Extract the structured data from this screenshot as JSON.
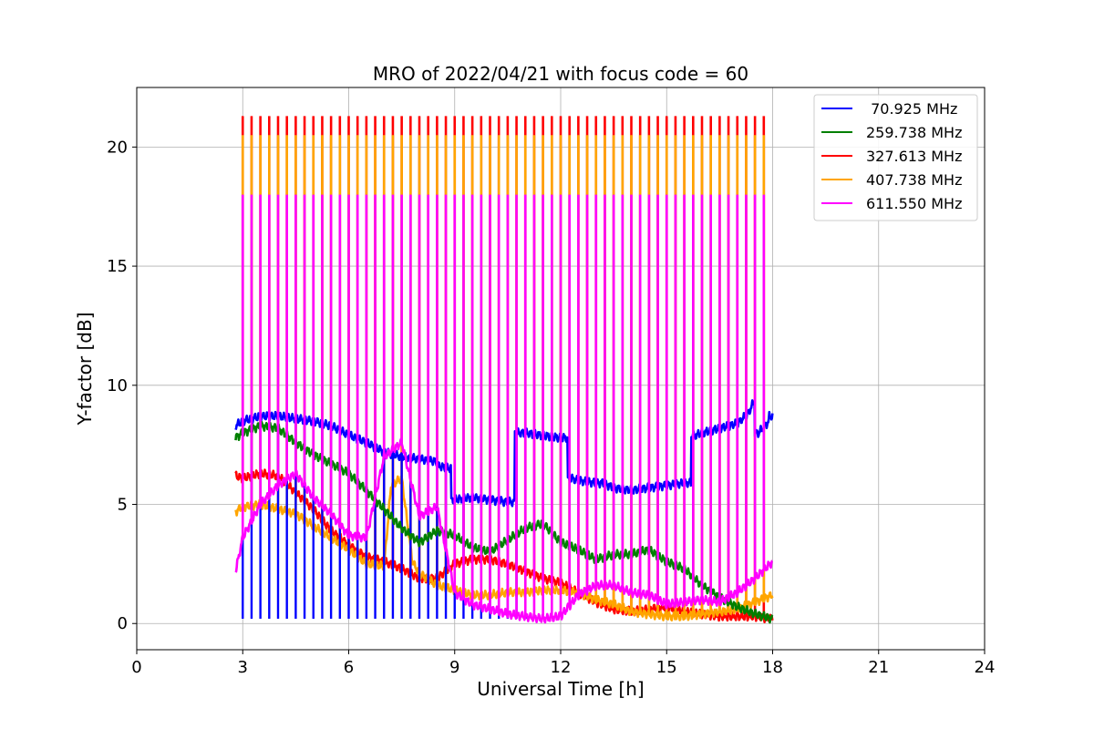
{
  "chart_data": {
    "type": "line",
    "title": "MRO of 2022/04/21 with focus code = 60",
    "xlabel": "Universal Time [h]",
    "ylabel": "Y-factor [dB]",
    "xlim": [
      0,
      24
    ],
    "ylim": [
      -1.1,
      22.5
    ],
    "xticks": [
      0,
      3,
      6,
      9,
      12,
      15,
      18,
      21,
      24
    ],
    "yticks": [
      0,
      5,
      10,
      15,
      20
    ],
    "grid": true,
    "legend_position": "top-right",
    "pulse_interval_h": 0.25,
    "pulse_start_h": 3.0,
    "pulse_end_h": 17.75,
    "series": [
      {
        "name": "70.925 MHz",
        "legend_label": " 70.925 MHz",
        "color": "#0000ff",
        "pulse_range_h": [
          3.0,
          11.0
        ],
        "pulse_low": 0.2,
        "x": [
          2.8,
          3.0,
          3.5,
          4.0,
          4.5,
          5.0,
          5.5,
          6.0,
          6.5,
          7.0,
          7.5,
          8.0,
          8.5,
          8.6,
          8.9,
          9.0,
          9.5,
          10.0,
          10.5,
          10.7,
          10.8,
          11.0,
          11.5,
          12.0,
          12.2,
          12.3,
          12.5,
          13.0,
          13.2,
          13.5,
          14.0,
          14.5,
          15.0,
          15.5,
          15.7,
          15.8,
          16.0,
          16.5,
          17.0,
          17.3,
          17.5,
          17.6,
          17.9,
          18.0
        ],
        "y": [
          8.3,
          8.5,
          8.7,
          8.7,
          8.6,
          8.5,
          8.3,
          7.9,
          7.6,
          7.2,
          7.0,
          6.9,
          6.8,
          6.6,
          6.5,
          5.2,
          5.3,
          5.2,
          5.1,
          5.1,
          8.0,
          8.0,
          7.9,
          7.8,
          7.8,
          6.1,
          6.0,
          5.9,
          5.9,
          5.7,
          5.6,
          5.7,
          5.8,
          5.9,
          5.9,
          7.9,
          8.0,
          8.2,
          8.4,
          8.8,
          9.4,
          8.0,
          8.5,
          8.7
        ]
      },
      {
        "name": "259.738 MHz",
        "legend_label": "259.738 MHz",
        "color": "#007f00",
        "x": [
          2.8,
          3.0,
          3.5,
          4.0,
          4.5,
          5.0,
          5.5,
          6.0,
          6.5,
          7.0,
          7.5,
          8.0,
          8.5,
          9.0,
          9.5,
          10.0,
          10.5,
          11.0,
          11.5,
          12.0,
          12.5,
          13.0,
          13.5,
          14.0,
          14.5,
          15.0,
          15.5,
          16.0,
          16.5,
          17.0,
          17.5,
          18.0
        ],
        "y": [
          7.8,
          8.0,
          8.3,
          8.2,
          7.6,
          7.1,
          6.7,
          6.3,
          5.6,
          4.8,
          4.0,
          3.4,
          3.9,
          3.7,
          3.2,
          3.0,
          3.5,
          4.0,
          4.2,
          3.4,
          3.1,
          2.7,
          2.9,
          2.9,
          3.1,
          2.6,
          2.3,
          1.6,
          1.1,
          0.7,
          0.4,
          0.2
        ]
      },
      {
        "name": "327.613 MHz",
        "legend_label": "327.613 MHz",
        "color": "#ff0000",
        "pulse_high": 21.3,
        "x": [
          2.8,
          3.0,
          3.5,
          4.0,
          4.5,
          5.0,
          5.5,
          6.0,
          6.5,
          7.0,
          7.5,
          8.0,
          8.5,
          9.0,
          9.5,
          10.0,
          10.5,
          11.0,
          11.5,
          12.0,
          12.5,
          13.0,
          13.5,
          14.0,
          14.5,
          15.0,
          15.5,
          16.0,
          16.5,
          17.0,
          17.5,
          18.0
        ],
        "y": [
          6.2,
          6.1,
          6.3,
          6.2,
          5.5,
          4.8,
          3.9,
          3.3,
          2.8,
          2.6,
          2.3,
          1.9,
          1.9,
          2.5,
          2.7,
          2.7,
          2.5,
          2.2,
          1.9,
          1.7,
          1.3,
          0.9,
          0.6,
          0.5,
          0.6,
          0.7,
          0.5,
          0.4,
          0.3,
          0.3,
          0.3,
          0.2
        ]
      },
      {
        "name": "407.738 MHz",
        "legend_label": "407.738 MHz",
        "color": "#ffa500",
        "pulse_high": 20.5,
        "x": [
          2.8,
          3.0,
          3.5,
          4.0,
          4.5,
          5.0,
          5.5,
          6.0,
          6.5,
          7.0,
          7.2,
          7.5,
          7.8,
          8.0,
          8.5,
          9.0,
          9.5,
          10.0,
          10.5,
          11.0,
          11.5,
          12.0,
          12.5,
          13.0,
          13.5,
          14.0,
          14.5,
          15.0,
          15.5,
          16.0,
          16.5,
          17.0,
          17.5,
          18.0
        ],
        "y": [
          4.7,
          4.9,
          5.0,
          4.8,
          4.6,
          4.1,
          3.6,
          3.1,
          2.5,
          2.4,
          5.8,
          6.1,
          2.6,
          2.1,
          1.6,
          1.4,
          1.2,
          1.2,
          1.3,
          1.3,
          1.4,
          1.4,
          1.3,
          1.0,
          0.8,
          0.5,
          0.4,
          0.3,
          0.3,
          0.4,
          0.5,
          0.6,
          0.9,
          1.2
        ]
      },
      {
        "name": "611.550 MHz",
        "legend_label": "611.550 MHz",
        "color": "#ff00ff",
        "pulse_high": 18.0,
        "x": [
          2.8,
          3.0,
          3.5,
          4.0,
          4.5,
          5.0,
          5.5,
          6.0,
          6.5,
          7.0,
          7.5,
          8.0,
          8.5,
          9.0,
          9.5,
          10.0,
          10.5,
          11.0,
          11.5,
          12.0,
          12.5,
          13.0,
          13.5,
          14.0,
          14.5,
          15.0,
          15.5,
          16.0,
          16.5,
          17.0,
          17.5,
          18.0
        ],
        "y": [
          2.2,
          3.6,
          5.0,
          5.8,
          6.3,
          5.3,
          4.6,
          3.7,
          3.6,
          7.0,
          7.6,
          4.5,
          4.9,
          1.3,
          0.8,
          0.6,
          0.4,
          0.3,
          0.2,
          0.3,
          1.2,
          1.6,
          1.6,
          1.3,
          1.2,
          0.8,
          0.9,
          1.0,
          0.9,
          1.3,
          1.9,
          2.6
        ]
      }
    ]
  }
}
